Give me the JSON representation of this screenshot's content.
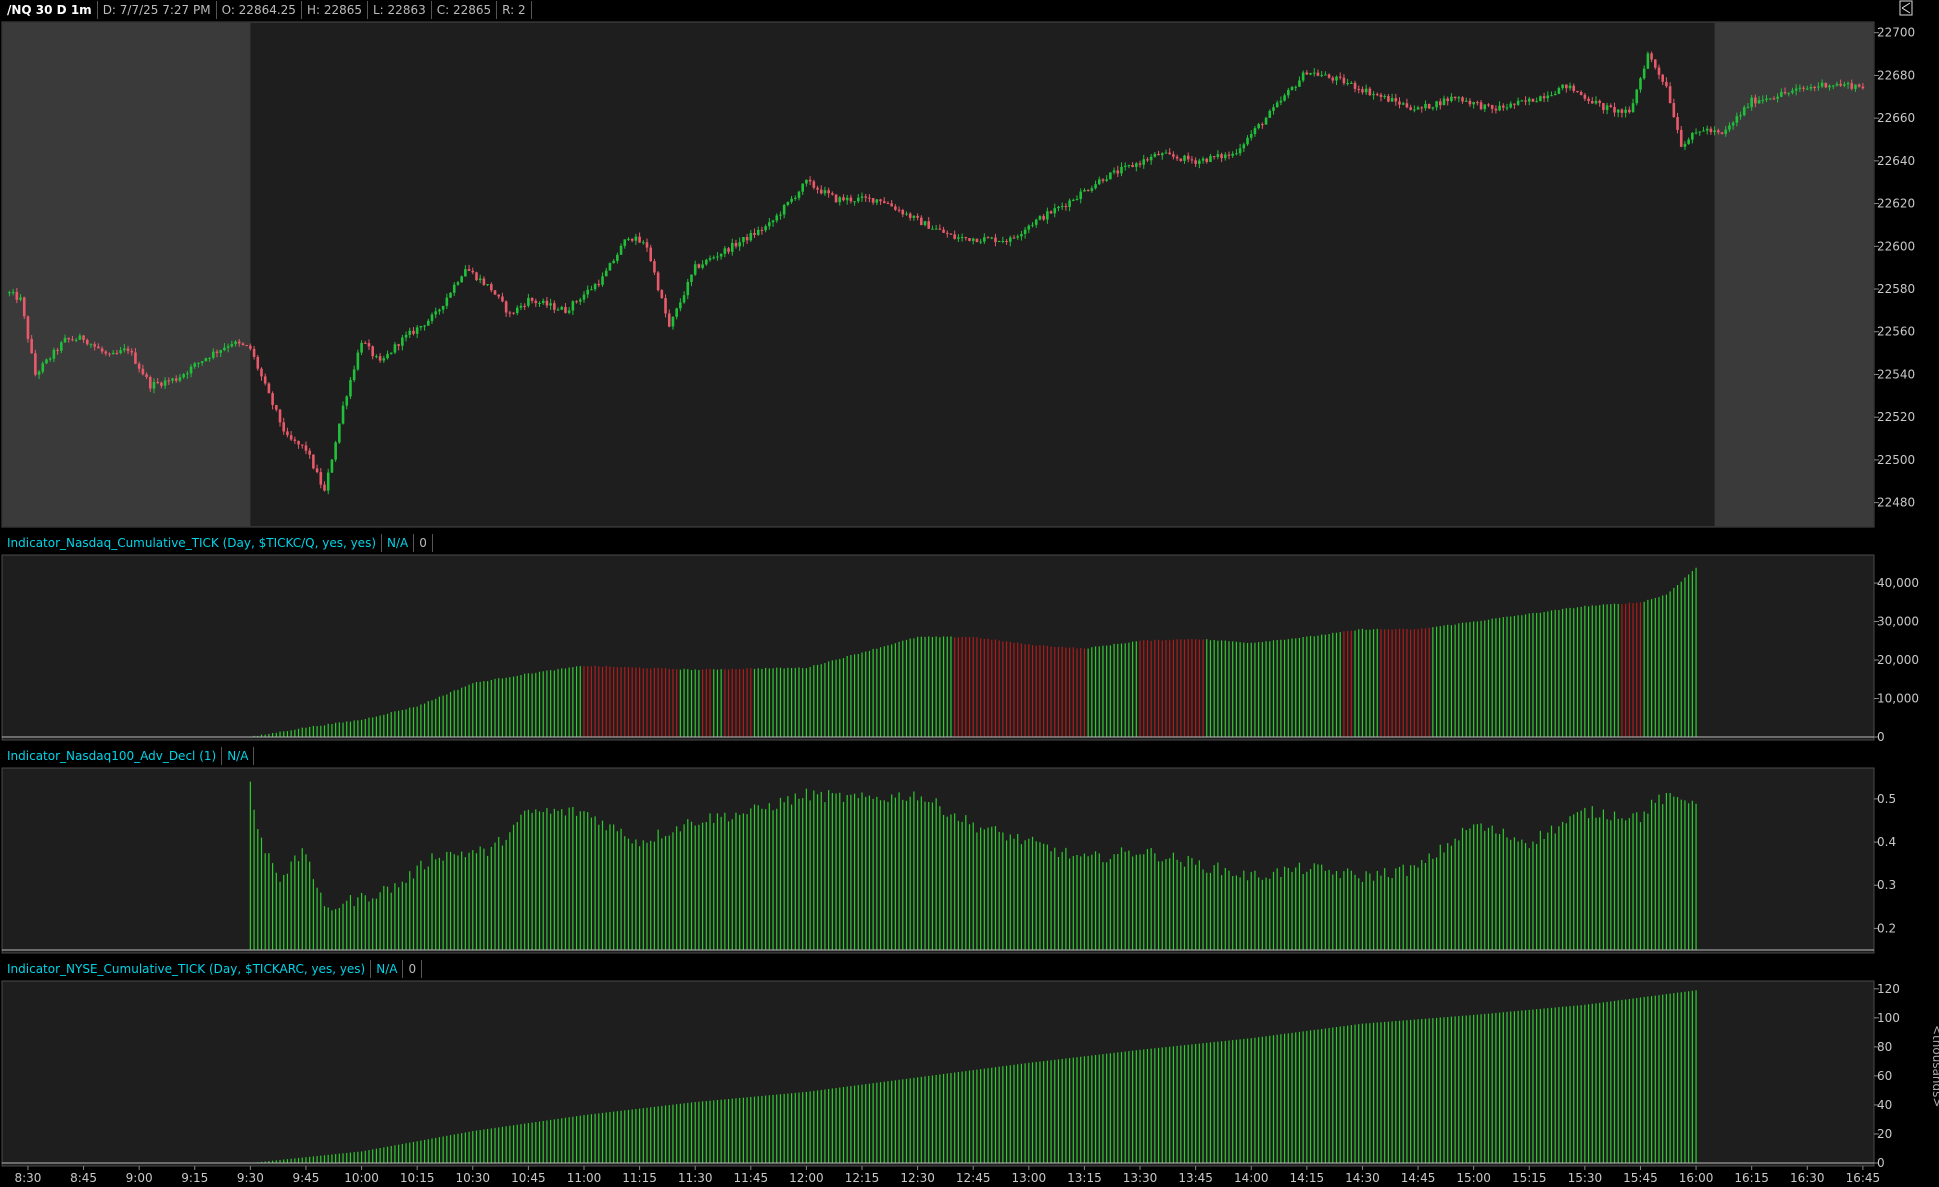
{
  "header": {
    "symbol": "/NQ 30 D 1m",
    "date": "D: 7/7/25 7:27 PM",
    "open": "O: 22864.25",
    "high": "H: 22865",
    "low": "L: 22863",
    "close": "C: 22865",
    "range": "R: 2"
  },
  "corner_icon": "expand-icon",
  "colors": {
    "background": "#1e1e1e",
    "extended_hours": "#3a3a3a",
    "up": "#21c03a",
    "down": "#e85a6a",
    "bar_green": "#2ecc2e",
    "bar_red": "#b31a1a",
    "label_cyan": "#00d4e8",
    "axis_text": "#c8c8c8"
  },
  "x_axis": {
    "time_labels": [
      "8:30",
      "8:45",
      "9:00",
      "9:15",
      "9:30",
      "9:45",
      "10:00",
      "10:15",
      "10:30",
      "10:45",
      "11:00",
      "11:15",
      "11:30",
      "11:45",
      "12:00",
      "12:15",
      "12:30",
      "12:45",
      "13:00",
      "13:15",
      "13:30",
      "13:45",
      "14:00",
      "14:15",
      "14:30",
      "14:45",
      "15:00",
      "15:15",
      "15:30",
      "15:45",
      "16:00",
      "16:15",
      "16:30",
      "16:45"
    ]
  },
  "chart_data": [
    {
      "type": "candlestick",
      "title": "/NQ 30 D 1m",
      "session_shading": {
        "premarket": [
          "8:25",
          "9:30"
        ],
        "postmarket": [
          "16:05",
          "16:45"
        ]
      },
      "ylim": [
        22470,
        22705
      ],
      "y_ticks": [
        22480,
        22500,
        22520,
        22540,
        22560,
        22580,
        22600,
        22620,
        22640,
        22660,
        22680,
        22700
      ],
      "price_path": [
        {
          "t": "8:25",
          "p": 22578
        },
        {
          "t": "8:28",
          "p": 22575
        },
        {
          "t": "8:32",
          "p": 22540
        },
        {
          "t": "8:36",
          "p": 22548
        },
        {
          "t": "8:40",
          "p": 22556
        },
        {
          "t": "8:45",
          "p": 22557
        },
        {
          "t": "8:52",
          "p": 22548
        },
        {
          "t": "8:57",
          "p": 22552
        },
        {
          "t": "9:03",
          "p": 22535
        },
        {
          "t": "9:10",
          "p": 22538
        },
        {
          "t": "9:18",
          "p": 22548
        },
        {
          "t": "9:25",
          "p": 22555
        },
        {
          "t": "9:30",
          "p": 22552
        },
        {
          "t": "9:35",
          "p": 22530
        },
        {
          "t": "9:40",
          "p": 22510
        },
        {
          "t": "9:45",
          "p": 22505
        },
        {
          "t": "9:50",
          "p": 22485
        },
        {
          "t": "9:55",
          "p": 22525
        },
        {
          "t": "10:00",
          "p": 22556
        },
        {
          "t": "10:05",
          "p": 22545
        },
        {
          "t": "10:10",
          "p": 22555
        },
        {
          "t": "10:20",
          "p": 22568
        },
        {
          "t": "10:28",
          "p": 22590
        },
        {
          "t": "10:35",
          "p": 22580
        },
        {
          "t": "10:40",
          "p": 22568
        },
        {
          "t": "10:45",
          "p": 22575
        },
        {
          "t": "10:55",
          "p": 22570
        },
        {
          "t": "11:05",
          "p": 22585
        },
        {
          "t": "11:12",
          "p": 22605
        },
        {
          "t": "11:17",
          "p": 22600
        },
        {
          "t": "11:23",
          "p": 22562
        },
        {
          "t": "11:30",
          "p": 22590
        },
        {
          "t": "11:40",
          "p": 22600
        },
        {
          "t": "11:50",
          "p": 22610
        },
        {
          "t": "12:00",
          "p": 22630
        },
        {
          "t": "12:08",
          "p": 22622
        },
        {
          "t": "12:20",
          "p": 22622
        },
        {
          "t": "12:30",
          "p": 22612
        },
        {
          "t": "12:40",
          "p": 22604
        },
        {
          "t": "12:55",
          "p": 22603
        },
        {
          "t": "13:00",
          "p": 22610
        },
        {
          "t": "13:10",
          "p": 22620
        },
        {
          "t": "13:20",
          "p": 22632
        },
        {
          "t": "13:35",
          "p": 22643
        },
        {
          "t": "13:45",
          "p": 22640
        },
        {
          "t": "13:55",
          "p": 22643
        },
        {
          "t": "14:05",
          "p": 22662
        },
        {
          "t": "14:15",
          "p": 22682
        },
        {
          "t": "14:25",
          "p": 22677
        },
        {
          "t": "14:35",
          "p": 22670
        },
        {
          "t": "14:45",
          "p": 22664
        },
        {
          "t": "14:55",
          "p": 22670
        },
        {
          "t": "15:05",
          "p": 22664
        },
        {
          "t": "15:15",
          "p": 22668
        },
        {
          "t": "15:25",
          "p": 22675
        },
        {
          "t": "15:35",
          "p": 22665
        },
        {
          "t": "15:42",
          "p": 22662
        },
        {
          "t": "15:47",
          "p": 22690
        },
        {
          "t": "15:52",
          "p": 22675
        },
        {
          "t": "15:56",
          "p": 22648
        },
        {
          "t": "16:02",
          "p": 22655
        },
        {
          "t": "16:07",
          "p": 22652
        },
        {
          "t": "16:15",
          "p": 22668
        },
        {
          "t": "16:25",
          "p": 22672
        },
        {
          "t": "16:35",
          "p": 22676
        },
        {
          "t": "16:45",
          "p": 22675
        }
      ]
    },
    {
      "type": "bar",
      "label": "Indicator_Nasdaq_Cumulative_TICK (Day, $TICKC/Q, yes, yes)",
      "value_label": "N/A",
      "extra_label": "0",
      "ylim": [
        0,
        46000
      ],
      "y_tick_labels": [
        "40,000",
        "30,000",
        "20,000",
        "10,000",
        "0"
      ],
      "y_tick_values": [
        40000,
        30000,
        20000,
        10000,
        0
      ],
      "range": [
        "9:30",
        "16:00"
      ],
      "path": [
        {
          "t": "9:30",
          "v": 0
        },
        {
          "t": "9:45",
          "v": 2500
        },
        {
          "t": "10:00",
          "v": 4500
        },
        {
          "t": "10:15",
          "v": 8000
        },
        {
          "t": "10:30",
          "v": 14000
        },
        {
          "t": "10:45",
          "v": 16500
        },
        {
          "t": "11:00",
          "v": 18500
        },
        {
          "t": "11:15",
          "v": 18000
        },
        {
          "t": "11:30",
          "v": 17500
        },
        {
          "t": "11:45",
          "v": 17800
        },
        {
          "t": "12:00",
          "v": 18000
        },
        {
          "t": "12:15",
          "v": 22000
        },
        {
          "t": "12:30",
          "v": 26000
        },
        {
          "t": "12:45",
          "v": 26000
        },
        {
          "t": "13:00",
          "v": 24000
        },
        {
          "t": "13:15",
          "v": 23000
        },
        {
          "t": "13:30",
          "v": 25000
        },
        {
          "t": "13:45",
          "v": 25500
        },
        {
          "t": "14:00",
          "v": 24500
        },
        {
          "t": "14:15",
          "v": 26000
        },
        {
          "t": "14:30",
          "v": 28000
        },
        {
          "t": "14:45",
          "v": 28000
        },
        {
          "t": "15:00",
          "v": 30000
        },
        {
          "t": "15:15",
          "v": 32000
        },
        {
          "t": "15:30",
          "v": 34000
        },
        {
          "t": "15:45",
          "v": 35000
        },
        {
          "t": "15:52",
          "v": 37000
        },
        {
          "t": "16:00",
          "v": 44000
        }
      ],
      "red_ranges": [
        [
          "11:00",
          "11:25"
        ],
        [
          "11:32",
          "11:34"
        ],
        [
          "11:38",
          "11:45"
        ],
        [
          "12:40",
          "13:15"
        ],
        [
          "13:30",
          "13:47"
        ],
        [
          "14:25",
          "14:27"
        ],
        [
          "14:35",
          "14:48"
        ],
        [
          "15:40",
          "15:45"
        ]
      ]
    },
    {
      "type": "bar",
      "label": "Indicator_Nasdaq100_Adv_Decl (1)",
      "value_label": "N/A",
      "ylim": [
        0.15,
        0.56
      ],
      "y_tick_labels": [
        "0.5",
        "0.4",
        "0.3",
        "0.2"
      ],
      "y_tick_values": [
        0.5,
        0.4,
        0.3,
        0.2
      ],
      "range": [
        "9:30",
        "16:00"
      ],
      "path": [
        {
          "t": "9:30",
          "v": 0.54
        },
        {
          "t": "9:32",
          "v": 0.42
        },
        {
          "t": "9:38",
          "v": 0.32
        },
        {
          "t": "9:45",
          "v": 0.38
        },
        {
          "t": "9:50",
          "v": 0.24
        },
        {
          "t": "9:55",
          "v": 0.26
        },
        {
          "t": "10:00",
          "v": 0.27
        },
        {
          "t": "10:10",
          "v": 0.3
        },
        {
          "t": "10:20",
          "v": 0.37
        },
        {
          "t": "10:35",
          "v": 0.38
        },
        {
          "t": "10:45",
          "v": 0.47
        },
        {
          "t": "11:00",
          "v": 0.47
        },
        {
          "t": "11:15",
          "v": 0.4
        },
        {
          "t": "11:30",
          "v": 0.45
        },
        {
          "t": "11:45",
          "v": 0.47
        },
        {
          "t": "12:00",
          "v": 0.51
        },
        {
          "t": "12:15",
          "v": 0.5
        },
        {
          "t": "12:30",
          "v": 0.51
        },
        {
          "t": "12:45",
          "v": 0.44
        },
        {
          "t": "13:00",
          "v": 0.4
        },
        {
          "t": "13:15",
          "v": 0.36
        },
        {
          "t": "13:30",
          "v": 0.38
        },
        {
          "t": "13:45",
          "v": 0.35
        },
        {
          "t": "14:00",
          "v": 0.32
        },
        {
          "t": "14:15",
          "v": 0.34
        },
        {
          "t": "14:30",
          "v": 0.32
        },
        {
          "t": "14:45",
          "v": 0.34
        },
        {
          "t": "15:00",
          "v": 0.44
        },
        {
          "t": "15:15",
          "v": 0.4
        },
        {
          "t": "15:30",
          "v": 0.47
        },
        {
          "t": "15:45",
          "v": 0.46
        },
        {
          "t": "15:50",
          "v": 0.5
        },
        {
          "t": "16:00",
          "v": 0.5
        }
      ]
    },
    {
      "type": "bar",
      "label": "Indicator_NYSE_Cumulative_TICK (Day, $TICKARC, yes, yes)",
      "value_label": "N/A",
      "extra_label": "0",
      "ylim": [
        0,
        124
      ],
      "y_tick_labels": [
        "120",
        "100",
        "80",
        "60",
        "40",
        "20",
        "0"
      ],
      "y_tick_values": [
        120,
        100,
        80,
        60,
        40,
        20,
        0
      ],
      "y_unit_label": "<thousands>",
      "range": [
        "9:30",
        "16:00"
      ],
      "path": [
        {
          "t": "9:30",
          "v": 0
        },
        {
          "t": "10:00",
          "v": 8
        },
        {
          "t": "10:30",
          "v": 22
        },
        {
          "t": "11:00",
          "v": 33
        },
        {
          "t": "11:30",
          "v": 42
        },
        {
          "t": "12:00",
          "v": 49
        },
        {
          "t": "12:30",
          "v": 59
        },
        {
          "t": "13:00",
          "v": 69
        },
        {
          "t": "13:30",
          "v": 78
        },
        {
          "t": "14:00",
          "v": 86
        },
        {
          "t": "14:30",
          "v": 96
        },
        {
          "t": "15:00",
          "v": 102
        },
        {
          "t": "15:30",
          "v": 109
        },
        {
          "t": "16:00",
          "v": 119
        }
      ]
    }
  ]
}
